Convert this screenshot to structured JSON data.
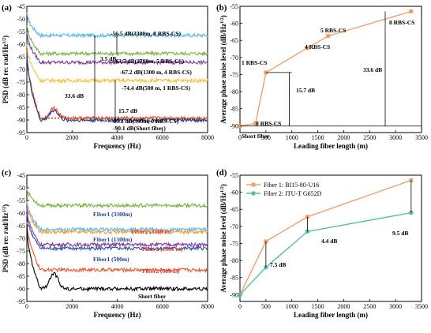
{
  "chart_data": [
    {
      "panel": "(a)",
      "type": "line",
      "xlabel": "Frequency (Hz)",
      "ylabel": "PSD (dB re: rad/Hz",
      "ylabel_sup": "1/2",
      "ylabel_end": ")",
      "xlim": [
        0,
        8000
      ],
      "ylim": [
        -95,
        -45
      ],
      "xticks": [
        0,
        2000,
        4000,
        6000,
        8000
      ],
      "yticks": [
        -95,
        -90,
        -85,
        -80,
        -75,
        -70,
        -65,
        -60,
        -55,
        -50,
        -45
      ],
      "series": [
        {
          "color": "#55b8e8",
          "level": -56.5,
          "start": -48
        },
        {
          "color": "#7cb342",
          "level": -63.7,
          "start": -52
        },
        {
          "color": "#7b3fa0",
          "level": -67.2,
          "start": -55
        },
        {
          "color": "#f2c33a",
          "level": -74.4,
          "start": -60
        },
        {
          "color": "#e2572e",
          "level": -89.3,
          "start": -62,
          "marker": true
        },
        {
          "color": "#1f3f8f",
          "level": -90.1,
          "start": -63
        }
      ],
      "annotations": [
        {
          "text": "-56.5 dB(3300m, 8 RBS-CS)"
        },
        {
          "text": "-63.7 dB(1700m, 5 RBS-CS)"
        },
        {
          "text": "-67.2 dB(1300 m, 4 RBS-CS)"
        },
        {
          "text": "-74.4 dB(500 m, 1 RBS-CS)"
        },
        {
          "text": "-89.3 dB(300m, 0 RBS-CS)"
        },
        {
          "text": "-90.1 dB(Short fiber)"
        },
        {
          "text": "3.5 dB"
        },
        {
          "text": "33.6 dB"
        },
        {
          "text": "15.7 dB"
        }
      ]
    },
    {
      "panel": "(b)",
      "type": "line",
      "xlabel": "Leading fiber length (m)",
      "ylabel": "Average phase noise level (dB/Hz",
      "ylabel_sup": "1/2",
      "ylabel_end": ")",
      "xlim": [
        0,
        3500
      ],
      "ylim": [
        -92,
        -55
      ],
      "xticks": [
        0,
        500,
        1000,
        1500,
        2000,
        2500,
        3000,
        3500
      ],
      "yticks": [
        -90,
        -85,
        -80,
        -75,
        -70,
        -65,
        -60,
        -55
      ],
      "x": [
        0,
        300,
        500,
        1300,
        1700,
        3300
      ],
      "y": [
        -90.1,
        -89.3,
        -74.4,
        -67.2,
        -63.7,
        -56.5
      ],
      "color": "#f0a06a",
      "annotations": [
        {
          "text": "Short fiber"
        },
        {
          "text": "0 RBS-CS"
        },
        {
          "text": "1 RBS-CS"
        },
        {
          "text": "4 RBS-CS"
        },
        {
          "text": "5 RBS-CS"
        },
        {
          "text": "8 RBS-CS"
        },
        {
          "text": "15.7 dB"
        },
        {
          "text": "33.6 dB"
        }
      ]
    },
    {
      "panel": "(c)",
      "type": "line",
      "xlabel": "Frequency (Hz)",
      "ylabel": "PSD (dB re: rad/Hz",
      "ylabel_sup": "1/2",
      "ylabel_end": ")",
      "xlim": [
        0,
        8000
      ],
      "ylim": [
        -95,
        -45
      ],
      "xticks": [
        0,
        2000,
        4000,
        6000,
        8000
      ],
      "yticks": [
        -95,
        -90,
        -85,
        -80,
        -75,
        -70,
        -65,
        -60,
        -55,
        -50,
        -45
      ],
      "series": [
        {
          "name": "Fiber1 (3300m)",
          "color": "#7cb342",
          "level": -57,
          "start": -50
        },
        {
          "name": "Fiber1 (1300m)",
          "color": "#55b8e8",
          "level": -66.5,
          "start": -55
        },
        {
          "name": "Fiber2 (3300 m)",
          "color": "#f0a040",
          "level": -67.5,
          "start": -56
        },
        {
          "name": "Fiber2 (1300 m)",
          "color": "#7b3fa0",
          "level": -72.5,
          "start": -58
        },
        {
          "name": "Fiber1 (500m)",
          "color": "#2b4fa0",
          "level": -74,
          "start": -60
        },
        {
          "name": "Fiber2 (500 m)",
          "color": "#e2572e",
          "level": -82.5,
          "start": -63
        },
        {
          "name": "Short fiber",
          "color": "#000000",
          "level": -90,
          "start": -65
        }
      ]
    },
    {
      "panel": "(d)",
      "type": "line",
      "xlabel": "Leading fiber length (m)",
      "ylabel": "Average phase noise level (dB/Hz",
      "ylabel_sup": "1/2",
      "ylabel_end": ")",
      "xlim": [
        0,
        3500
      ],
      "ylim": [
        -92,
        -55
      ],
      "xticks": [
        0,
        500,
        1000,
        1500,
        2000,
        2500,
        3000,
        3500
      ],
      "yticks": [
        -90,
        -85,
        -80,
        -75,
        -70,
        -65,
        -60,
        -55
      ],
      "legend_position": "top-left",
      "series": [
        {
          "name": "Fiber 1: BI15-80-U16",
          "color": "#f0a06a",
          "marker": "square",
          "x": [
            0,
            500,
            1300,
            3300
          ],
          "y": [
            -90,
            -74.4,
            -67.2,
            -56.5
          ]
        },
        {
          "name": "Fiber 2: ITU-T G652D",
          "color": "#5bbf9f",
          "marker": "circle",
          "x": [
            0,
            500,
            1300,
            3300
          ],
          "y": [
            -90,
            -82,
            -71.5,
            -66
          ]
        }
      ],
      "annotations": [
        {
          "text": "7.5 dB"
        },
        {
          "text": "4.4 dB"
        },
        {
          "text": "9.5 dB"
        }
      ]
    }
  ]
}
